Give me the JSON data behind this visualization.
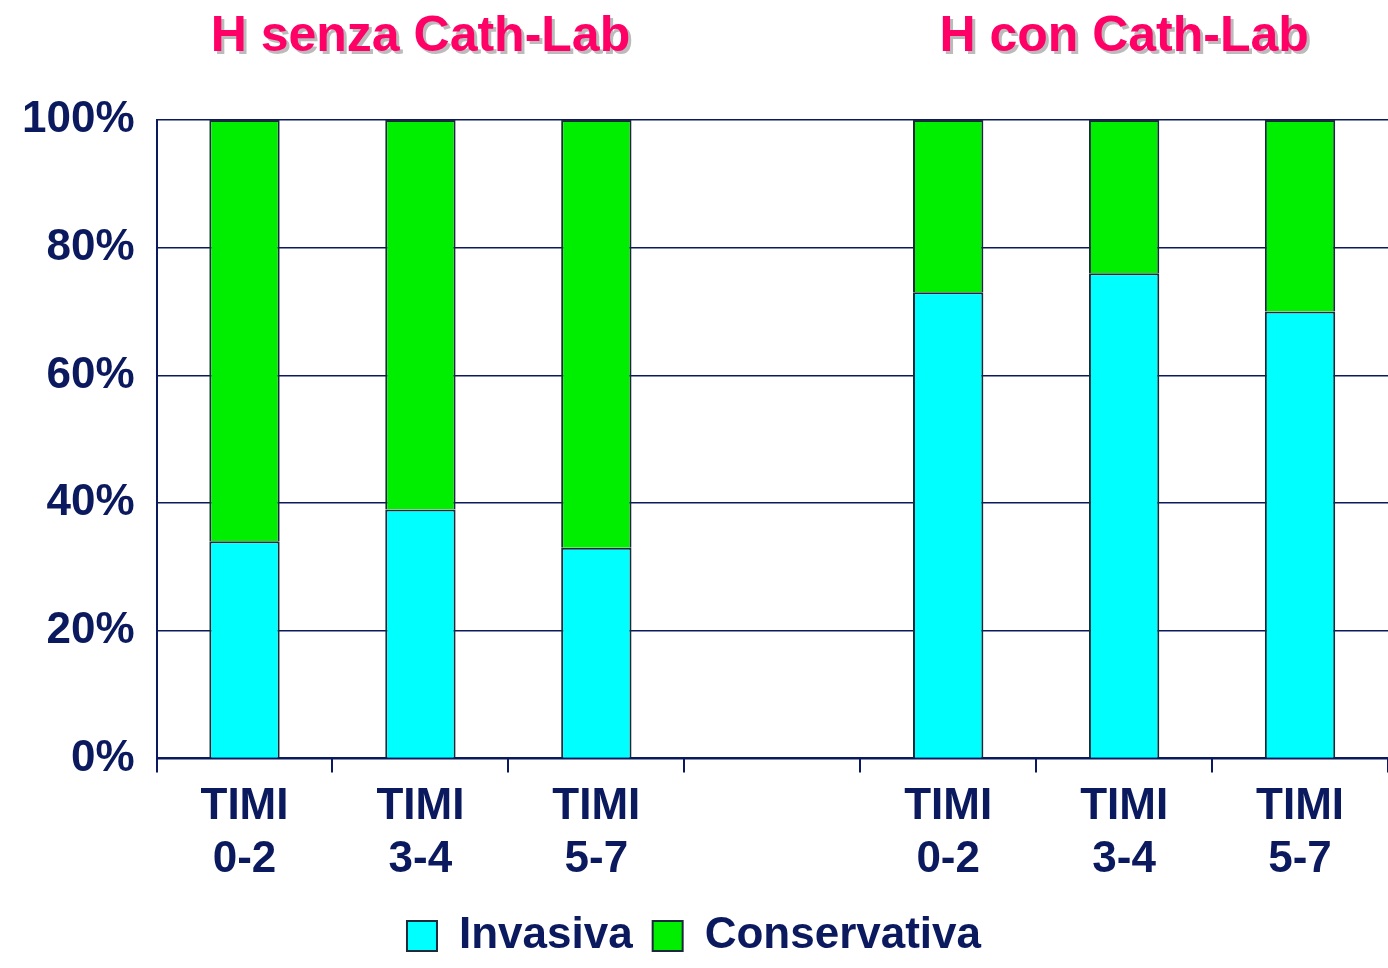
{
  "chart_data": {
    "type": "bar",
    "stacked": true,
    "categories": [
      "TIMI 0-2",
      "TIMI 3-4",
      "TIMI 5-7",
      null,
      "TIMI 0-2",
      "TIMI 3-4",
      "TIMI 5-7"
    ],
    "series": [
      {
        "name": "Invasiva",
        "color": "#00ffff",
        "values": [
          34,
          39,
          33,
          null,
          73,
          76,
          70
        ]
      },
      {
        "name": "Conservativa",
        "color": "#00ee00",
        "values": [
          66,
          61,
          67,
          null,
          27,
          24,
          30
        ]
      }
    ],
    "ylim": [
      0,
      100
    ],
    "yticks": [
      {
        "value": 0,
        "label": "0%"
      },
      {
        "value": 20,
        "label": "20%"
      },
      {
        "value": 40,
        "label": "40%"
      },
      {
        "value": 60,
        "label": "60%"
      },
      {
        "value": 80,
        "label": "80%"
      },
      {
        "value": 100,
        "label": "100%"
      }
    ],
    "grid": "y",
    "legend": "bottom",
    "annotations": [
      "H senza Cath-Lab",
      "H con Cath-Lab"
    ]
  }
}
